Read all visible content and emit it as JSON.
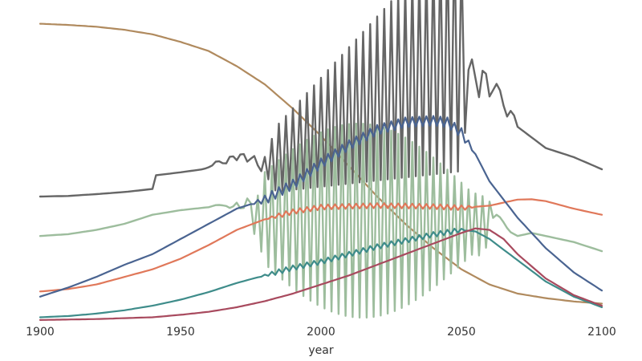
{
  "chart_data": {
    "type": "line",
    "title": "",
    "xlabel": "year",
    "ylabel": "",
    "xlim": [
      1900,
      2100
    ],
    "ylim": [
      0,
      100
    ],
    "x_ticks": [
      "1900",
      "1950",
      "2000",
      "2050",
      "2100"
    ],
    "x_tick_values": [
      1900,
      1950,
      2000,
      2050,
      2100
    ],
    "grid": false,
    "legend": "none",
    "series": [
      {
        "color": "#b08a5e",
        "stroke_width": 2.2,
        "points": [
          [
            1900,
            98
          ],
          [
            1910,
            97.6
          ],
          [
            1920,
            97
          ],
          [
            1930,
            96
          ],
          [
            1940,
            94.5
          ],
          [
            1950,
            92
          ],
          [
            1960,
            89
          ],
          [
            1970,
            84
          ],
          [
            1980,
            78
          ],
          [
            1990,
            70
          ],
          [
            2000,
            61
          ],
          [
            2010,
            51
          ],
          [
            2020,
            41
          ],
          [
            2030,
            32
          ],
          [
            2040,
            24
          ],
          [
            2050,
            17
          ],
          [
            2060,
            12
          ],
          [
            2070,
            9
          ],
          [
            2080,
            7.5
          ],
          [
            2090,
            6.4
          ],
          [
            2100,
            5.7
          ]
        ]
      },
      {
        "color": "#666666",
        "stroke_width": 2.4,
        "points": [
          [
            1900,
            41
          ],
          [
            1910,
            41.2
          ],
          [
            1920,
            41.8
          ],
          [
            1930,
            42.5
          ],
          [
            1940,
            43.5
          ],
          [
            1941,
            48
          ],
          [
            1950,
            49
          ],
          [
            1958,
            50
          ],
          [
            1961,
            51
          ],
          [
            1963,
            53
          ],
          [
            1966,
            51.5
          ],
          [
            1968,
            55
          ],
          [
            1970,
            53
          ],
          [
            1972,
            56
          ],
          [
            1974,
            52
          ],
          [
            1976,
            55
          ],
          [
            1978,
            50
          ],
          [
            2050,
            90
          ],
          [
            2052,
            74
          ],
          [
            2054,
            88
          ],
          [
            2056,
            72
          ],
          [
            2058,
            86
          ],
          [
            2060,
            74
          ],
          [
            2063,
            79
          ],
          [
            2066,
            67
          ],
          [
            2068,
            70
          ],
          [
            2070,
            64
          ],
          [
            2080,
            57
          ],
          [
            2090,
            54
          ],
          [
            2100,
            50
          ]
        ],
        "oscillation": {
          "from": 1978,
          "to": 2053,
          "period": 2.5
        }
      },
      {
        "color": "#9dbd9d",
        "stroke_width": 2.4,
        "points": [
          [
            1900,
            28
          ],
          [
            1910,
            28.6
          ],
          [
            1920,
            30
          ],
          [
            1930,
            32
          ],
          [
            1940,
            35
          ],
          [
            1950,
            36.5
          ],
          [
            1955,
            37
          ],
          [
            1960,
            37.5
          ],
          [
            1963,
            38.3
          ],
          [
            1966,
            38
          ],
          [
            1968,
            37
          ],
          [
            1970,
            39
          ],
          [
            1972,
            36
          ],
          [
            1974,
            41
          ],
          [
            1976,
            33
          ],
          [
            1978,
            34
          ],
          [
            2055,
            32
          ],
          [
            2058,
            31
          ],
          [
            2061,
            36
          ],
          [
            2064,
            34
          ],
          [
            2067,
            29.5
          ],
          [
            2070,
            28
          ],
          [
            2075,
            29
          ],
          [
            2080,
            28
          ],
          [
            2090,
            26
          ],
          [
            2100,
            23
          ]
        ],
        "oscillation": {
          "from": 1974,
          "to": 2062,
          "period": 2.5
        }
      },
      {
        "color": "#e0785a",
        "stroke_width": 2.2,
        "points": [
          [
            1900,
            9.7
          ],
          [
            1910,
            10.5
          ],
          [
            1920,
            12
          ],
          [
            1930,
            14.5
          ],
          [
            1940,
            17
          ],
          [
            1950,
            20.5
          ],
          [
            1960,
            25
          ],
          [
            1970,
            30
          ],
          [
            1980,
            33.5
          ],
          [
            1990,
            36
          ],
          [
            2000,
            37.5
          ],
          [
            2010,
            37.8
          ],
          [
            2020,
            38
          ],
          [
            2030,
            37.9
          ],
          [
            2040,
            37.7
          ],
          [
            2050,
            37.3
          ],
          [
            2060,
            38
          ],
          [
            2070,
            40
          ],
          [
            2075,
            40.1
          ],
          [
            2080,
            39.5
          ],
          [
            2090,
            37
          ],
          [
            2100,
            35
          ]
        ],
        "oscillation": {
          "from": 1980,
          "to": 2055,
          "period": 2.5
        }
      },
      {
        "color": "#4a6491",
        "stroke_width": 2.2,
        "points": [
          [
            1900,
            8
          ],
          [
            1910,
            11
          ],
          [
            1920,
            14.5
          ],
          [
            1930,
            18.5
          ],
          [
            1940,
            22
          ],
          [
            1950,
            27
          ],
          [
            1960,
            32
          ],
          [
            1970,
            37
          ],
          [
            1980,
            40
          ],
          [
            1990,
            45
          ],
          [
            2000,
            52
          ],
          [
            2010,
            58
          ],
          [
            2020,
            63
          ],
          [
            2030,
            65.5
          ],
          [
            2040,
            66
          ],
          [
            2045,
            65.5
          ],
          [
            2050,
            62
          ],
          [
            2055,
            55
          ],
          [
            2060,
            46
          ],
          [
            2070,
            34
          ],
          [
            2080,
            24
          ],
          [
            2090,
            16
          ],
          [
            2100,
            10
          ]
        ],
        "oscillation": {
          "from": 1975,
          "to": 2055,
          "period": 2.5
        }
      },
      {
        "color": "#3e8c8a",
        "stroke_width": 2.2,
        "points": [
          [
            1900,
            1.2
          ],
          [
            1910,
            1.6
          ],
          [
            1920,
            2.4
          ],
          [
            1930,
            3.5
          ],
          [
            1940,
            5
          ],
          [
            1950,
            7
          ],
          [
            1960,
            9.5
          ],
          [
            1970,
            12.5
          ],
          [
            1980,
            15
          ],
          [
            1990,
            17.5
          ],
          [
            2000,
            19.5
          ],
          [
            2010,
            22
          ],
          [
            2020,
            24.5
          ],
          [
            2030,
            26.5
          ],
          [
            2040,
            28.5
          ],
          [
            2050,
            30
          ],
          [
            2055,
            29.5
          ],
          [
            2060,
            27
          ],
          [
            2070,
            20
          ],
          [
            2080,
            13
          ],
          [
            2090,
            8
          ],
          [
            2100,
            4.5
          ]
        ],
        "oscillation": {
          "from": 1978,
          "to": 2052,
          "period": 2.5
        }
      },
      {
        "color": "#a84a5e",
        "stroke_width": 2.2,
        "points": [
          [
            1900,
            0.3
          ],
          [
            1920,
            0.6
          ],
          [
            1940,
            1.2
          ],
          [
            1950,
            2
          ],
          [
            1960,
            3
          ],
          [
            1970,
            4.5
          ],
          [
            1980,
            6.5
          ],
          [
            1990,
            9
          ],
          [
            2000,
            12
          ],
          [
            2010,
            15
          ],
          [
            2020,
            18.5
          ],
          [
            2030,
            22
          ],
          [
            2040,
            25.5
          ],
          [
            2050,
            29
          ],
          [
            2055,
            30.5
          ],
          [
            2060,
            30
          ],
          [
            2065,
            27
          ],
          [
            2070,
            22
          ],
          [
            2080,
            14
          ],
          [
            2090,
            8.5
          ],
          [
            2100,
            5
          ]
        ]
      }
    ]
  }
}
